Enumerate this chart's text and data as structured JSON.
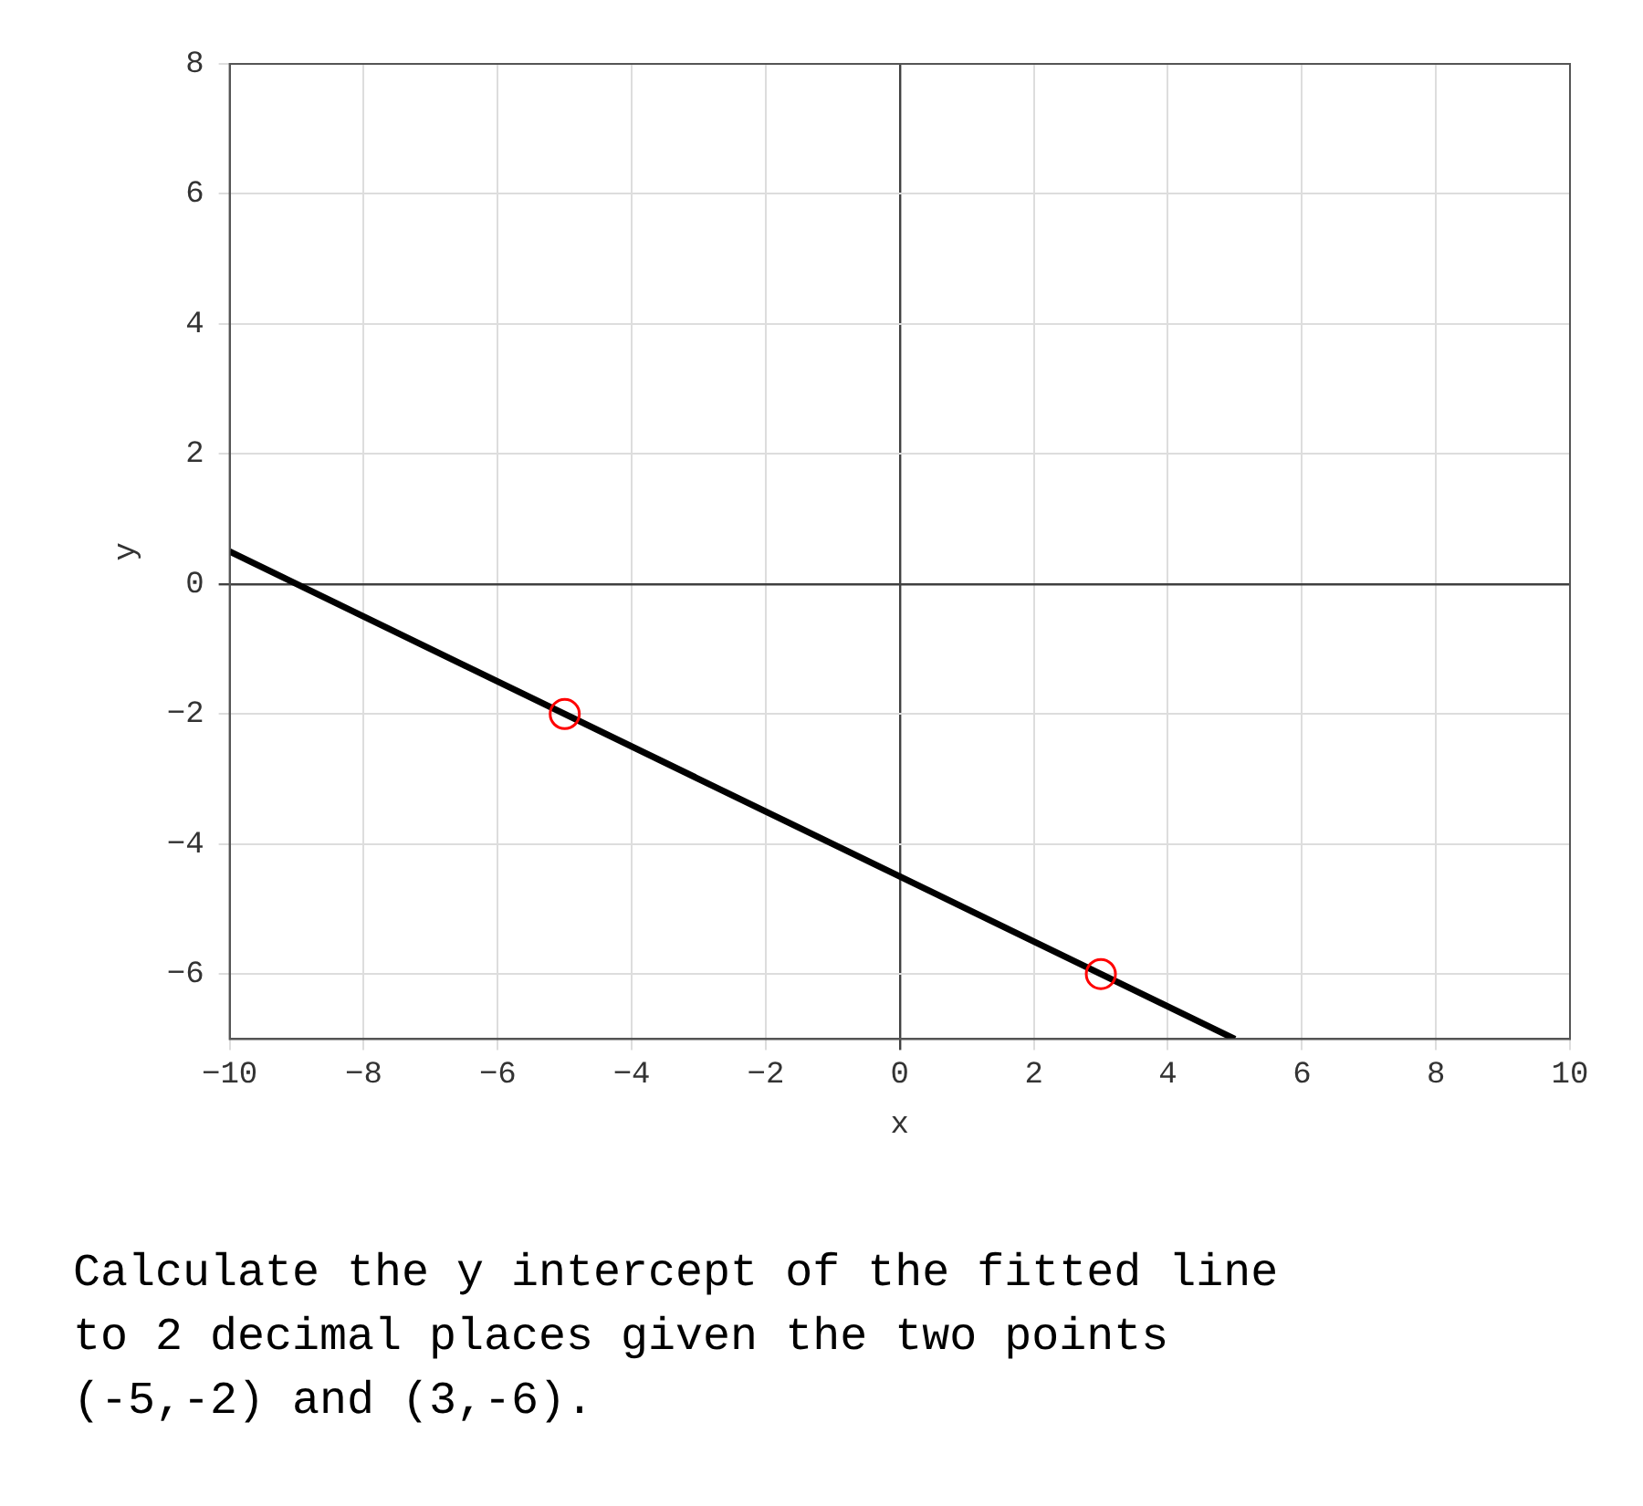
{
  "chart_data": {
    "type": "scatter",
    "xlabel": "x",
    "ylabel": "y",
    "xlim": [
      -10,
      10
    ],
    "xticks": [
      -10,
      -8,
      -6,
      -4,
      -2,
      0,
      2,
      4,
      6,
      8,
      10
    ],
    "ylim": [
      -7,
      8
    ],
    "yticks": [
      -6,
      -4,
      -2,
      0,
      2,
      4,
      6,
      8
    ],
    "grid": true,
    "legend": false,
    "series": [
      {
        "type": "line",
        "color": "#000000",
        "x": [
          -10,
          5
        ],
        "values": [
          0.5,
          -7
        ],
        "marker": "none",
        "line_style": "solid"
      },
      {
        "type": "scatter",
        "color": "#ff0000",
        "x": [
          -5,
          3
        ],
        "values": [
          -2,
          -6
        ],
        "marker": "circle"
      }
    ],
    "annotations": [
      "Calculate the y intercept of the fitted line\nto 2 decimal places given the two points\n(-5,-2) and (3,-6)."
    ]
  }
}
